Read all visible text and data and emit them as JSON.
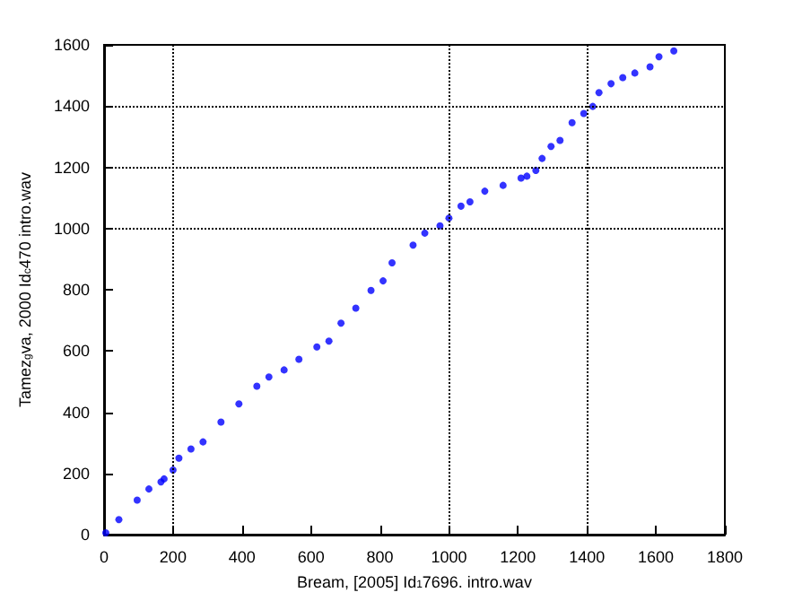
{
  "chart_data": {
    "type": "scatter",
    "xlabel": "Bream, [2005] Id$_{1}$7696. intro.wav",
    "ylabel": "Tamez$_{g}$va, 2000 Id$_{c}$470 intro.wav",
    "x": [
      5,
      43,
      96,
      130,
      165,
      174,
      200,
      217,
      252,
      287,
      339,
      391,
      443,
      478,
      522,
      565,
      617,
      652,
      687,
      730,
      774,
      809,
      835,
      896,
      930,
      974,
      1000,
      1035,
      1061,
      1104,
      1157,
      1209,
      1226,
      1252,
      1270,
      1296,
      1322,
      1357,
      1391,
      1417,
      1435,
      1470,
      1504,
      1539,
      1583,
      1609,
      1652
    ],
    "series": [
      {
        "color": "#0000ff",
        "values": [
          6,
          49,
          113,
          149,
          172,
          182,
          211,
          250,
          280,
          303,
          368,
          427,
          485,
          515,
          538,
          573,
          613,
          632,
          691,
          740,
          798,
          829,
          888,
          946,
          985,
          1009,
          1034,
          1073,
          1087,
          1122,
          1141,
          1165,
          1171,
          1190,
          1229,
          1268,
          1288,
          1346,
          1376,
          1399,
          1444,
          1473,
          1493,
          1508,
          1528,
          1561,
          1580
        ]
      }
    ],
    "xlim": [
      0,
      1800
    ],
    "xticks": [
      0,
      200,
      400,
      600,
      800,
      1000,
      1200,
      1400,
      1600,
      1800
    ],
    "ylim": [
      0,
      1600
    ],
    "yticks": [
      0,
      200,
      400,
      600,
      800,
      1000,
      1200,
      1400,
      1600
    ],
    "marker": "circle",
    "grid": false,
    "ref_lines": [
      {
        "axis": "x",
        "value": 200,
        "color": "#000000",
        "line_style": "dotted"
      },
      {
        "axis": "x",
        "value": 1000,
        "color": "#000000",
        "line_style": "dotted"
      },
      {
        "axis": "x",
        "value": 1400,
        "color": "#000000",
        "line_style": "dotted"
      },
      {
        "axis": "y",
        "value": 1000,
        "color": "#000000",
        "line_style": "dotted"
      },
      {
        "axis": "y",
        "value": 1200,
        "color": "#000000",
        "line_style": "dotted"
      },
      {
        "axis": "y",
        "value": 1400,
        "color": "#000000",
        "line_style": "dotted"
      }
    ]
  }
}
